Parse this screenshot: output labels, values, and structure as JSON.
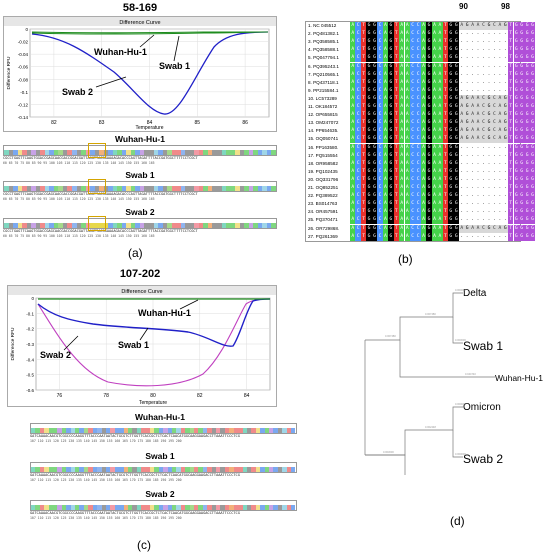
{
  "panel_a": {
    "title": "58-169",
    "letter": "(a)",
    "chart_header": "Difference Curve",
    "y_axis_label": "Difference RFU",
    "x_axis_label": "Temperature",
    "x_ticks": [
      "82",
      "83",
      "84",
      "85",
      "86"
    ],
    "y_ticks": [
      "0",
      "-0.02",
      "-0.04",
      "-0.06",
      "-0.08",
      "-0.1",
      "-0.12",
      "-0.14"
    ],
    "labels": {
      "wuhan": "Wuhan-Hu-1",
      "swab1": "Swab 1",
      "swab2": "Swab 2"
    },
    "seq_titles": [
      "Wuhan-Hu-1",
      "Swab 1",
      "Swab 2"
    ],
    "seq_text": "CGCCTGAGTTCAAGTGGACCGAGCAACGACCGGACGATTAGGTTACGGAAAAGACACCCAGTTAGATTTTACCGATGGCTTTTCCTCGCT",
    "ruler": "60   65   70   75   80   85   90   95   100  105  110  115  120  125  130  135  140  145  150  155  160  165"
  },
  "panel_b": {
    "letter": "(b)",
    "markers": [
      "90",
      "98"
    ],
    "rows": [
      {
        "name": "1. NC 045512",
        "seq": "ACTGGCAGTAACCAGAATGGAGAACGCAGTGGGG"
      },
      {
        "name": "2. PQ481382.1",
        "seq": "ACTGGCAGTAACCAGAATGG.........TGGGG"
      },
      {
        "name": "3. PQ358585.1",
        "seq": "ACTGGCAGTAACCAGAATGG.........TGGGG"
      },
      {
        "name": "4. PQ358588.1",
        "seq": "ACTGGCAGTAACCAGAATGG.........TGGGG"
      },
      {
        "name": "5. PQ047794.1",
        "seq": "ACTGGCAGTAACCAGAATGG.........TGGGG"
      },
      {
        "name": "6. PQ395243.1",
        "seq": "ACTGGCAGTAACCAGAATGG.........TGGGG"
      },
      {
        "name": "7. PQ210565.1",
        "seq": "ACTGGCAGTAACCAGAATGG.........TGGGG"
      },
      {
        "name": "8. PQ437118.1",
        "seq": "ACTGGCAGTAACCAGAATGG.........TGGGG"
      },
      {
        "name": "9. PP215584.1",
        "seq": "ACTGGCAGTAACCAGAATGG.........TGGGG"
      },
      {
        "name": "10. LC573289",
        "seq": "ACTGGCAGTAACCAGAATGGAGAACGCAGTGGGG"
      },
      {
        "name": "11. OK184572",
        "seq": "ACTGGCAGTAACCAGAATGGAGAACGCAGTGGGG"
      },
      {
        "name": "12. OP655815",
        "seq": "ACTGGCAGTAACCAGAATGGAGAACGCAGTGGGG"
      },
      {
        "name": "13. OM247072",
        "seq": "ACTGGCAGTAACCAGAATGGAGAACGCAGTGGGG"
      },
      {
        "name": "14. PP654635.",
        "seq": "ACTGGCAGTAACCAGAATGGAGAACGCAGTGGGG"
      },
      {
        "name": "15. OQ050741",
        "seq": "ACTGGCAGTAACCAGAATGGAGAACGCAGTGGGG"
      },
      {
        "name": "16. PP163580.",
        "seq": "ACTGGCAGTAACCAGAATGG.........TGGGG"
      },
      {
        "name": "17. PQ515554",
        "seq": "ACTGGCAGTAACCAGAATGG.........TGGGG"
      },
      {
        "name": "18. OR958582",
        "seq": "ACTGGCAGTAACCAGAATGG.........TGGGG"
      },
      {
        "name": "19. PQ102435",
        "seq": "ACTGGCAGTAACCAGAATGG.........TGGGG"
      },
      {
        "name": "20. OQ331796",
        "seq": "ACTGGCAGTAACCAGAATGG.........TGGGG"
      },
      {
        "name": "21. OQ852251",
        "seq": "ACTGGCAGTAACCAGAATGG.........TGGGG"
      },
      {
        "name": "22. PQ389522",
        "seq": "ACTGGCAGTAACCAGAATGG.........TGGGG"
      },
      {
        "name": "23. BS014763",
        "seq": "ACTGGCAGTAACCAGAATGG.........TGGGG"
      },
      {
        "name": "24. OR457591",
        "seq": "ACTGGCAGTAACCAGAATGG.........TGGGG"
      },
      {
        "name": "25. PQ370471",
        "seq": "ACTGGCAGTAACCAGAATGG.........TGGGG"
      },
      {
        "name": "26. OR729868.",
        "seq": "ACTGGCAGTAACCAGAATGGAGAACGCAGTGGGG"
      },
      {
        "name": "27. PQ261369",
        "seq": "ACTGGCAGTAACCAGAATGG.........TGGGG"
      }
    ],
    "colors": {
      "A": "#45d24a",
      "C": "#4a92ff",
      "G": "#000000",
      "T": "#e8312c",
      "bg": "#d8d8d8"
    }
  },
  "panel_c": {
    "title": "107-202",
    "letter": "(c)",
    "chart_header": "Difference Curve",
    "y_axis_label": "Difference RFU",
    "x_axis_label": "Temperature",
    "x_ticks": [
      "76",
      "78",
      "80",
      "82",
      "84"
    ],
    "y_ticks": [
      "0",
      "-0.1",
      "-0.2",
      "-0.3",
      "-0.4",
      "-0.5",
      "-0.6"
    ],
    "labels": {
      "wuhan": "Wuhan-Hu-1",
      "swab1": "Swab 1",
      "swab2": "Swab 2"
    },
    "seq_titles": [
      "Wuhan-Hu-1",
      "Swab 1",
      "Swab 2"
    ],
    "seq_text": "GATCAAAACAACGTCGGCCCCAAGGTTTACCCAATAATACTGCGTCTTGGTTCACCGCTCTCACTCAACATGGCAAGGAAGACCTTAAATTCCCTCG",
    "ruler": "107  110  115  120  125  130  135  140  145  150  155  160  165  170  175  180  185  190  195  200"
  },
  "panel_d": {
    "letter": "(d)",
    "leaves": [
      "Delta",
      "Swab 1",
      "Wuhan-Hu-1",
      "Omicron",
      "Swab 2"
    ],
    "branch_values": [
      "0.000000",
      "0.007480",
      "0.000000",
      "0.044740",
      "0.000000",
      "0.002448",
      "0.000000",
      "0.007480",
      "0.003000"
    ]
  },
  "colors": {
    "wuhan": "#1e8c1e",
    "swab1": "#2020c8",
    "swab2": "#c040c0",
    "header": "#e6e6e6"
  }
}
